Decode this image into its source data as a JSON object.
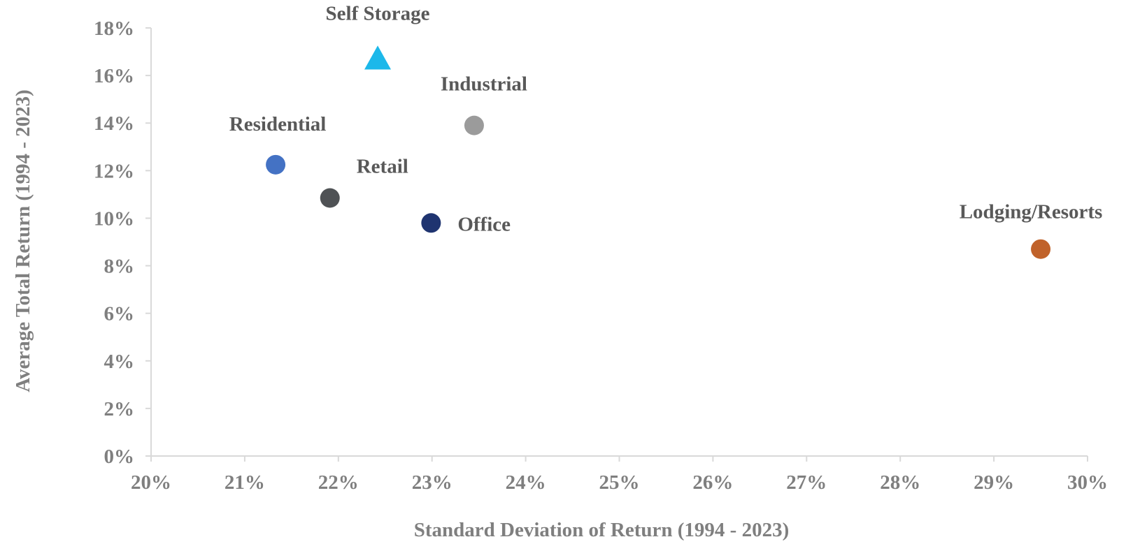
{
  "chart_data": {
    "type": "scatter",
    "xlabel": "Standard Deviation of Return (1994 - 2023)",
    "ylabel": "Average Total Return (1994 - 2023)",
    "xlim": [
      0.2,
      0.3
    ],
    "ylim": [
      0,
      0.18
    ],
    "x_ticks": [
      "20%",
      "21%",
      "22%",
      "23%",
      "24%",
      "25%",
      "26%",
      "27%",
      "28%",
      "29%",
      "30%"
    ],
    "y_ticks": [
      "0%",
      "2%",
      "4%",
      "6%",
      "8%",
      "10%",
      "12%",
      "14%",
      "16%",
      "18%"
    ],
    "grid": false,
    "legend": "none",
    "points": [
      {
        "label": "Self Storage",
        "x": 0.2242,
        "y": 0.167,
        "marker": "triangle",
        "color": "#1cb8ea"
      },
      {
        "label": "Industrial",
        "x": 0.2345,
        "y": 0.139,
        "marker": "circle",
        "color": "#9b9b9b"
      },
      {
        "label": "Residential",
        "x": 0.2133,
        "y": 0.1225,
        "marker": "circle",
        "color": "#4472c4"
      },
      {
        "label": "Retail",
        "x": 0.2191,
        "y": 0.1085,
        "marker": "circle",
        "color": "#4f5255"
      },
      {
        "label": "Office",
        "x": 0.2299,
        "y": 0.098,
        "marker": "circle",
        "color": "#1f3470"
      },
      {
        "label": "Lodging/Resorts",
        "x": 0.295,
        "y": 0.087,
        "marker": "circle",
        "color": "#c0622a"
      }
    ]
  }
}
